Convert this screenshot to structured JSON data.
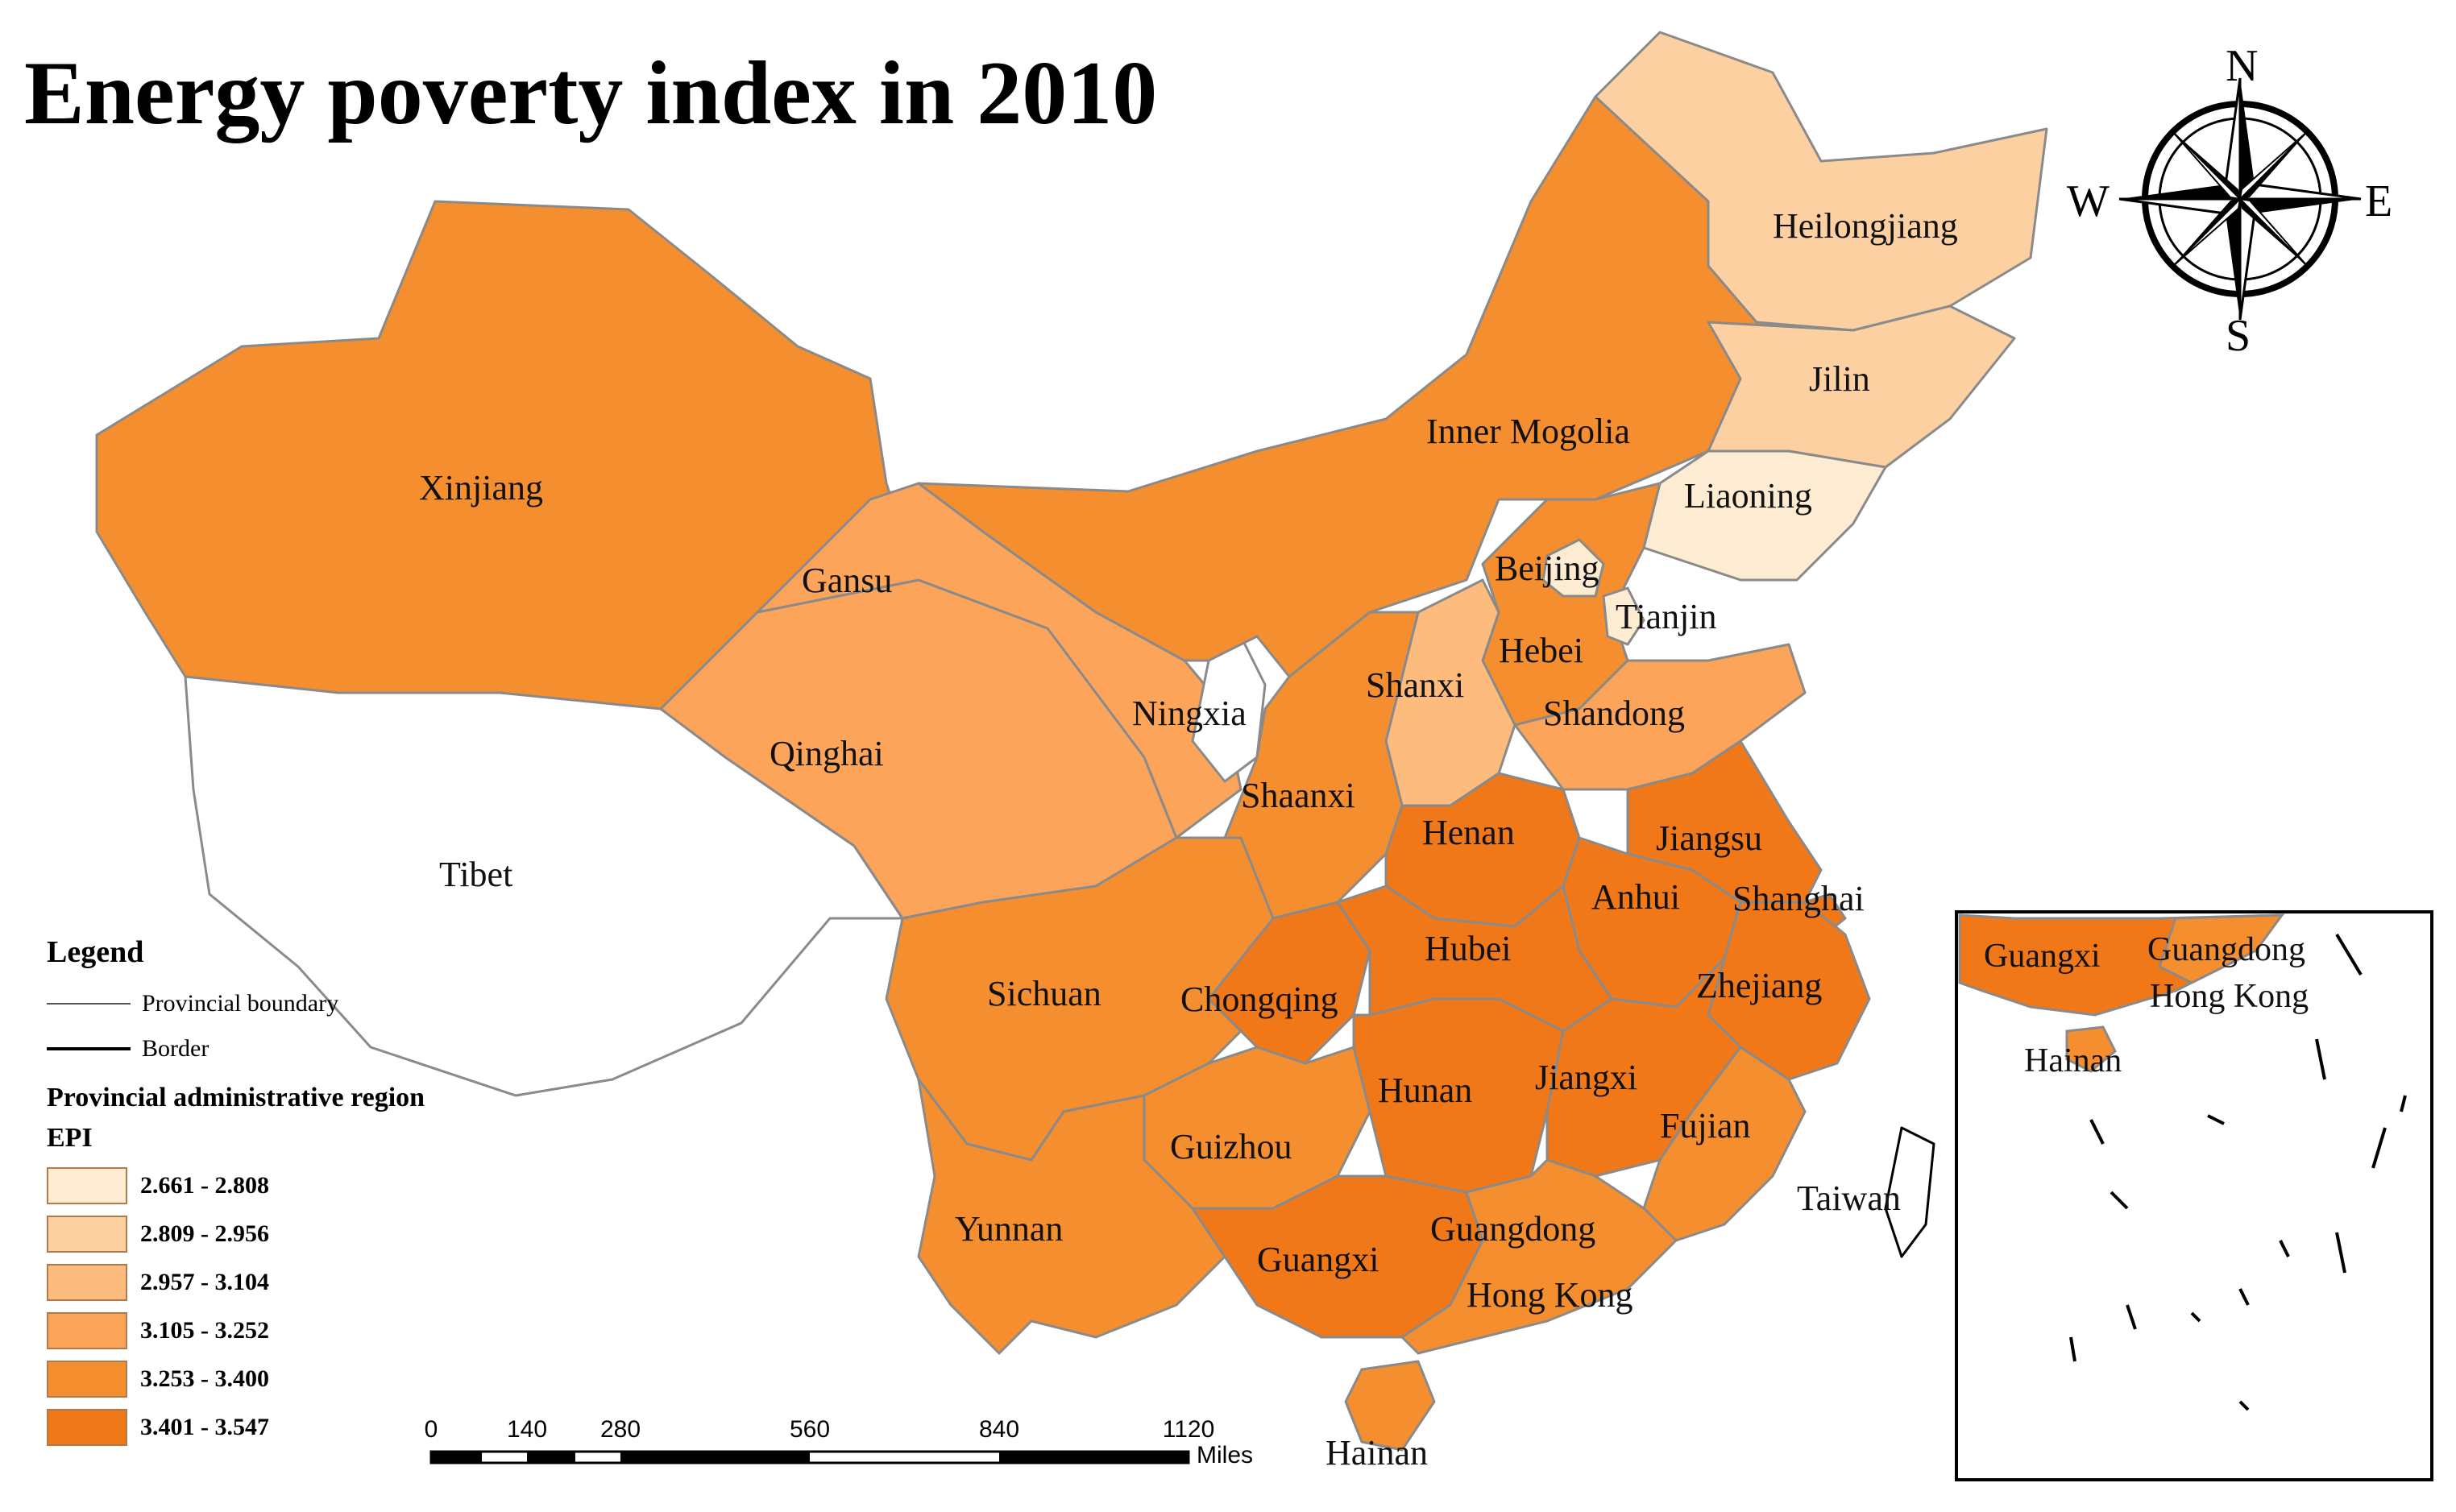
{
  "title": "Energy poverty index in 2010",
  "compass": {
    "north": "N",
    "south": "S",
    "east": "E",
    "west": "W"
  },
  "colors": {
    "class1": "#fdebd2",
    "class2": "#fdd0a2",
    "class3": "#fdbb7e",
    "class4": "#fca55a",
    "class5": "#f58e2e",
    "class6": "#f07818",
    "nodata": "#ffffff",
    "boundary": "#8a8a8a"
  },
  "legend": {
    "title": "Legend",
    "provincial_boundary": "Provincial boundary",
    "border": "Border",
    "subtitle": "Provincial administrative region",
    "field": "EPI",
    "classes": [
      {
        "label": "2.661 - 2.808",
        "color": "#fdebd2"
      },
      {
        "label": "2.809 - 2.956",
        "color": "#fdd0a2"
      },
      {
        "label": "2.957 - 3.104",
        "color": "#fdbb7e"
      },
      {
        "label": "3.105 - 3.252",
        "color": "#fca55a"
      },
      {
        "label": "3.253 - 3.400",
        "color": "#f58e2e"
      },
      {
        "label": "3.401 - 3.547",
        "color": "#f07818"
      }
    ]
  },
  "scale_bar": {
    "ticks": [
      "0",
      "140",
      "280",
      "560",
      "840",
      "1120"
    ],
    "unit": "Miles"
  },
  "provinces": {
    "xinjiang": "Xinjiang",
    "tibet": "Tibet",
    "qinghai": "Qinghai",
    "gansu": "Gansu",
    "ningxia": "Ningxia",
    "inner_mongolia": "Inner Mogolia",
    "heilongjiang": "Heilongjiang",
    "jilin": "Jilin",
    "liaoning": "Liaoning",
    "beijing": "Beijing",
    "tianjin": "Tianjin",
    "hebei": "Hebei",
    "shanxi": "Shanxi",
    "shandong": "Shandong",
    "shaanxi": "Shaanxi",
    "henan": "Henan",
    "jiangsu": "Jiangsu",
    "anhui": "Anhui",
    "shanghai": "Shanghai",
    "sichuan": "Sichuan",
    "chongqing": "Chongqing",
    "hubei": "Hubei",
    "zhejiang": "Zhejiang",
    "hunan": "Hunan",
    "jiangxi": "Jiangxi",
    "guizhou": "Guizhou",
    "fujian": "Fujian",
    "yunnan": "Yunnan",
    "guangxi": "Guangxi",
    "guangdong": "Guangdong",
    "hong_kong": "Hong Kong",
    "taiwan": "Taiwan",
    "hainan": "Hainan"
  },
  "inset": {
    "guangxi": "Guangxi",
    "guangdong": "Guangdong",
    "hong_kong": "Hong Kong",
    "hainan": "Hainan"
  }
}
